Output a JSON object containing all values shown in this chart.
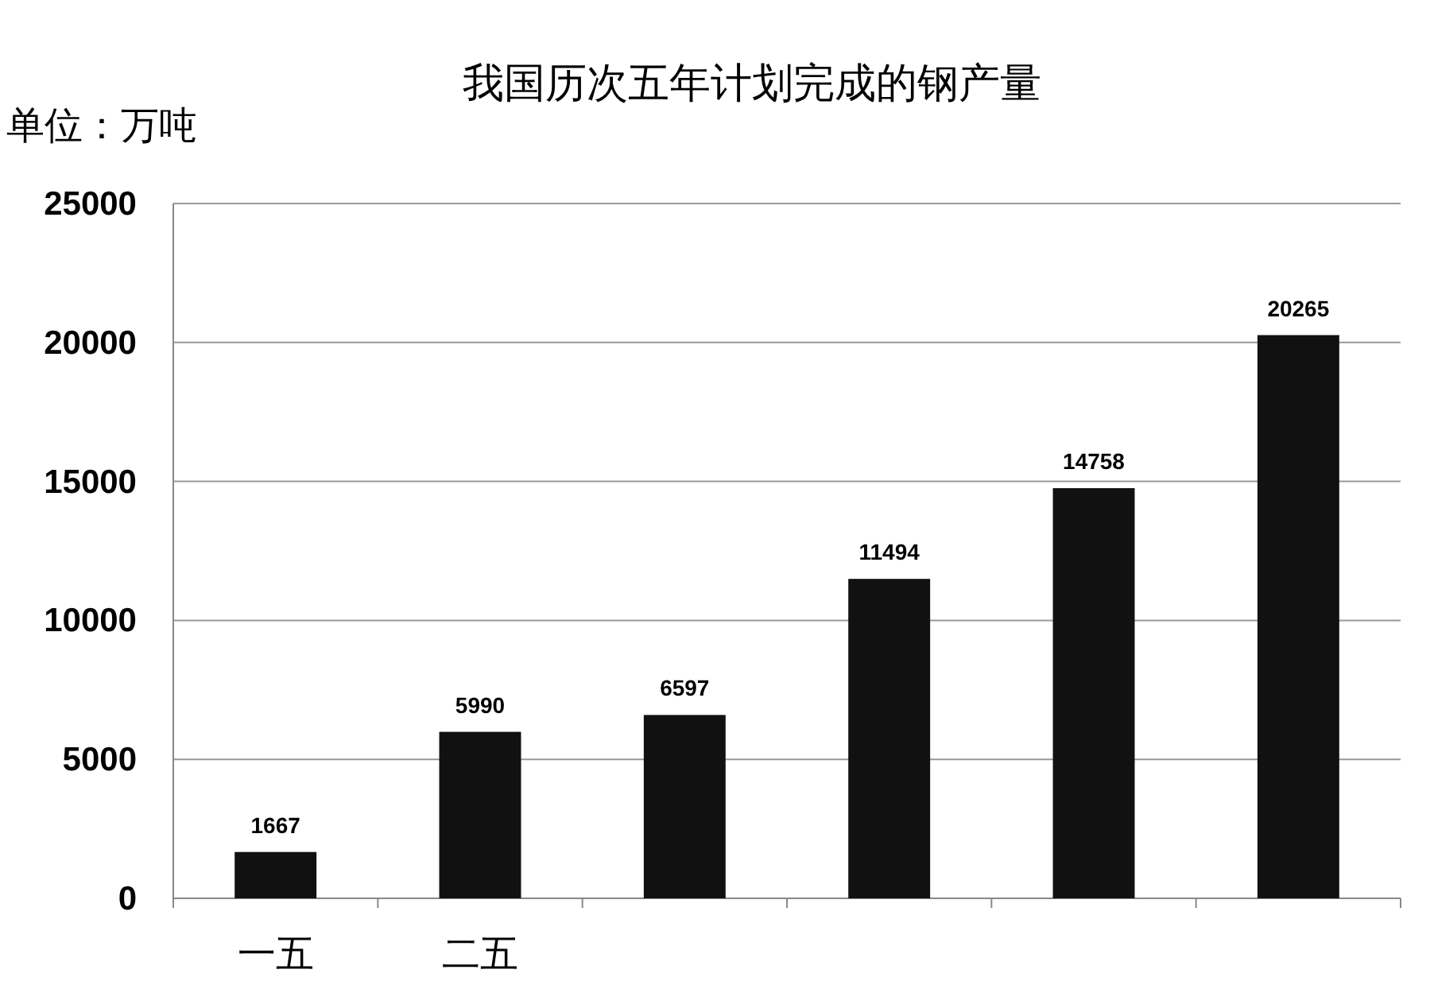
{
  "chart_data": {
    "type": "bar",
    "title": "我国历次五年计划完成的钢产量",
    "ylabel": "单位：万吨",
    "categories": [
      "一五",
      "二五",
      null,
      null,
      null,
      null
    ],
    "values": [
      1667,
      5990,
      6597,
      11494,
      14758,
      20265
    ],
    "color": "#111111",
    "ylim": [
      0,
      25000
    ],
    "yticks": [
      0,
      5000,
      10000,
      15000,
      20000,
      25000
    ],
    "grid": "y",
    "data_labels": true
  }
}
